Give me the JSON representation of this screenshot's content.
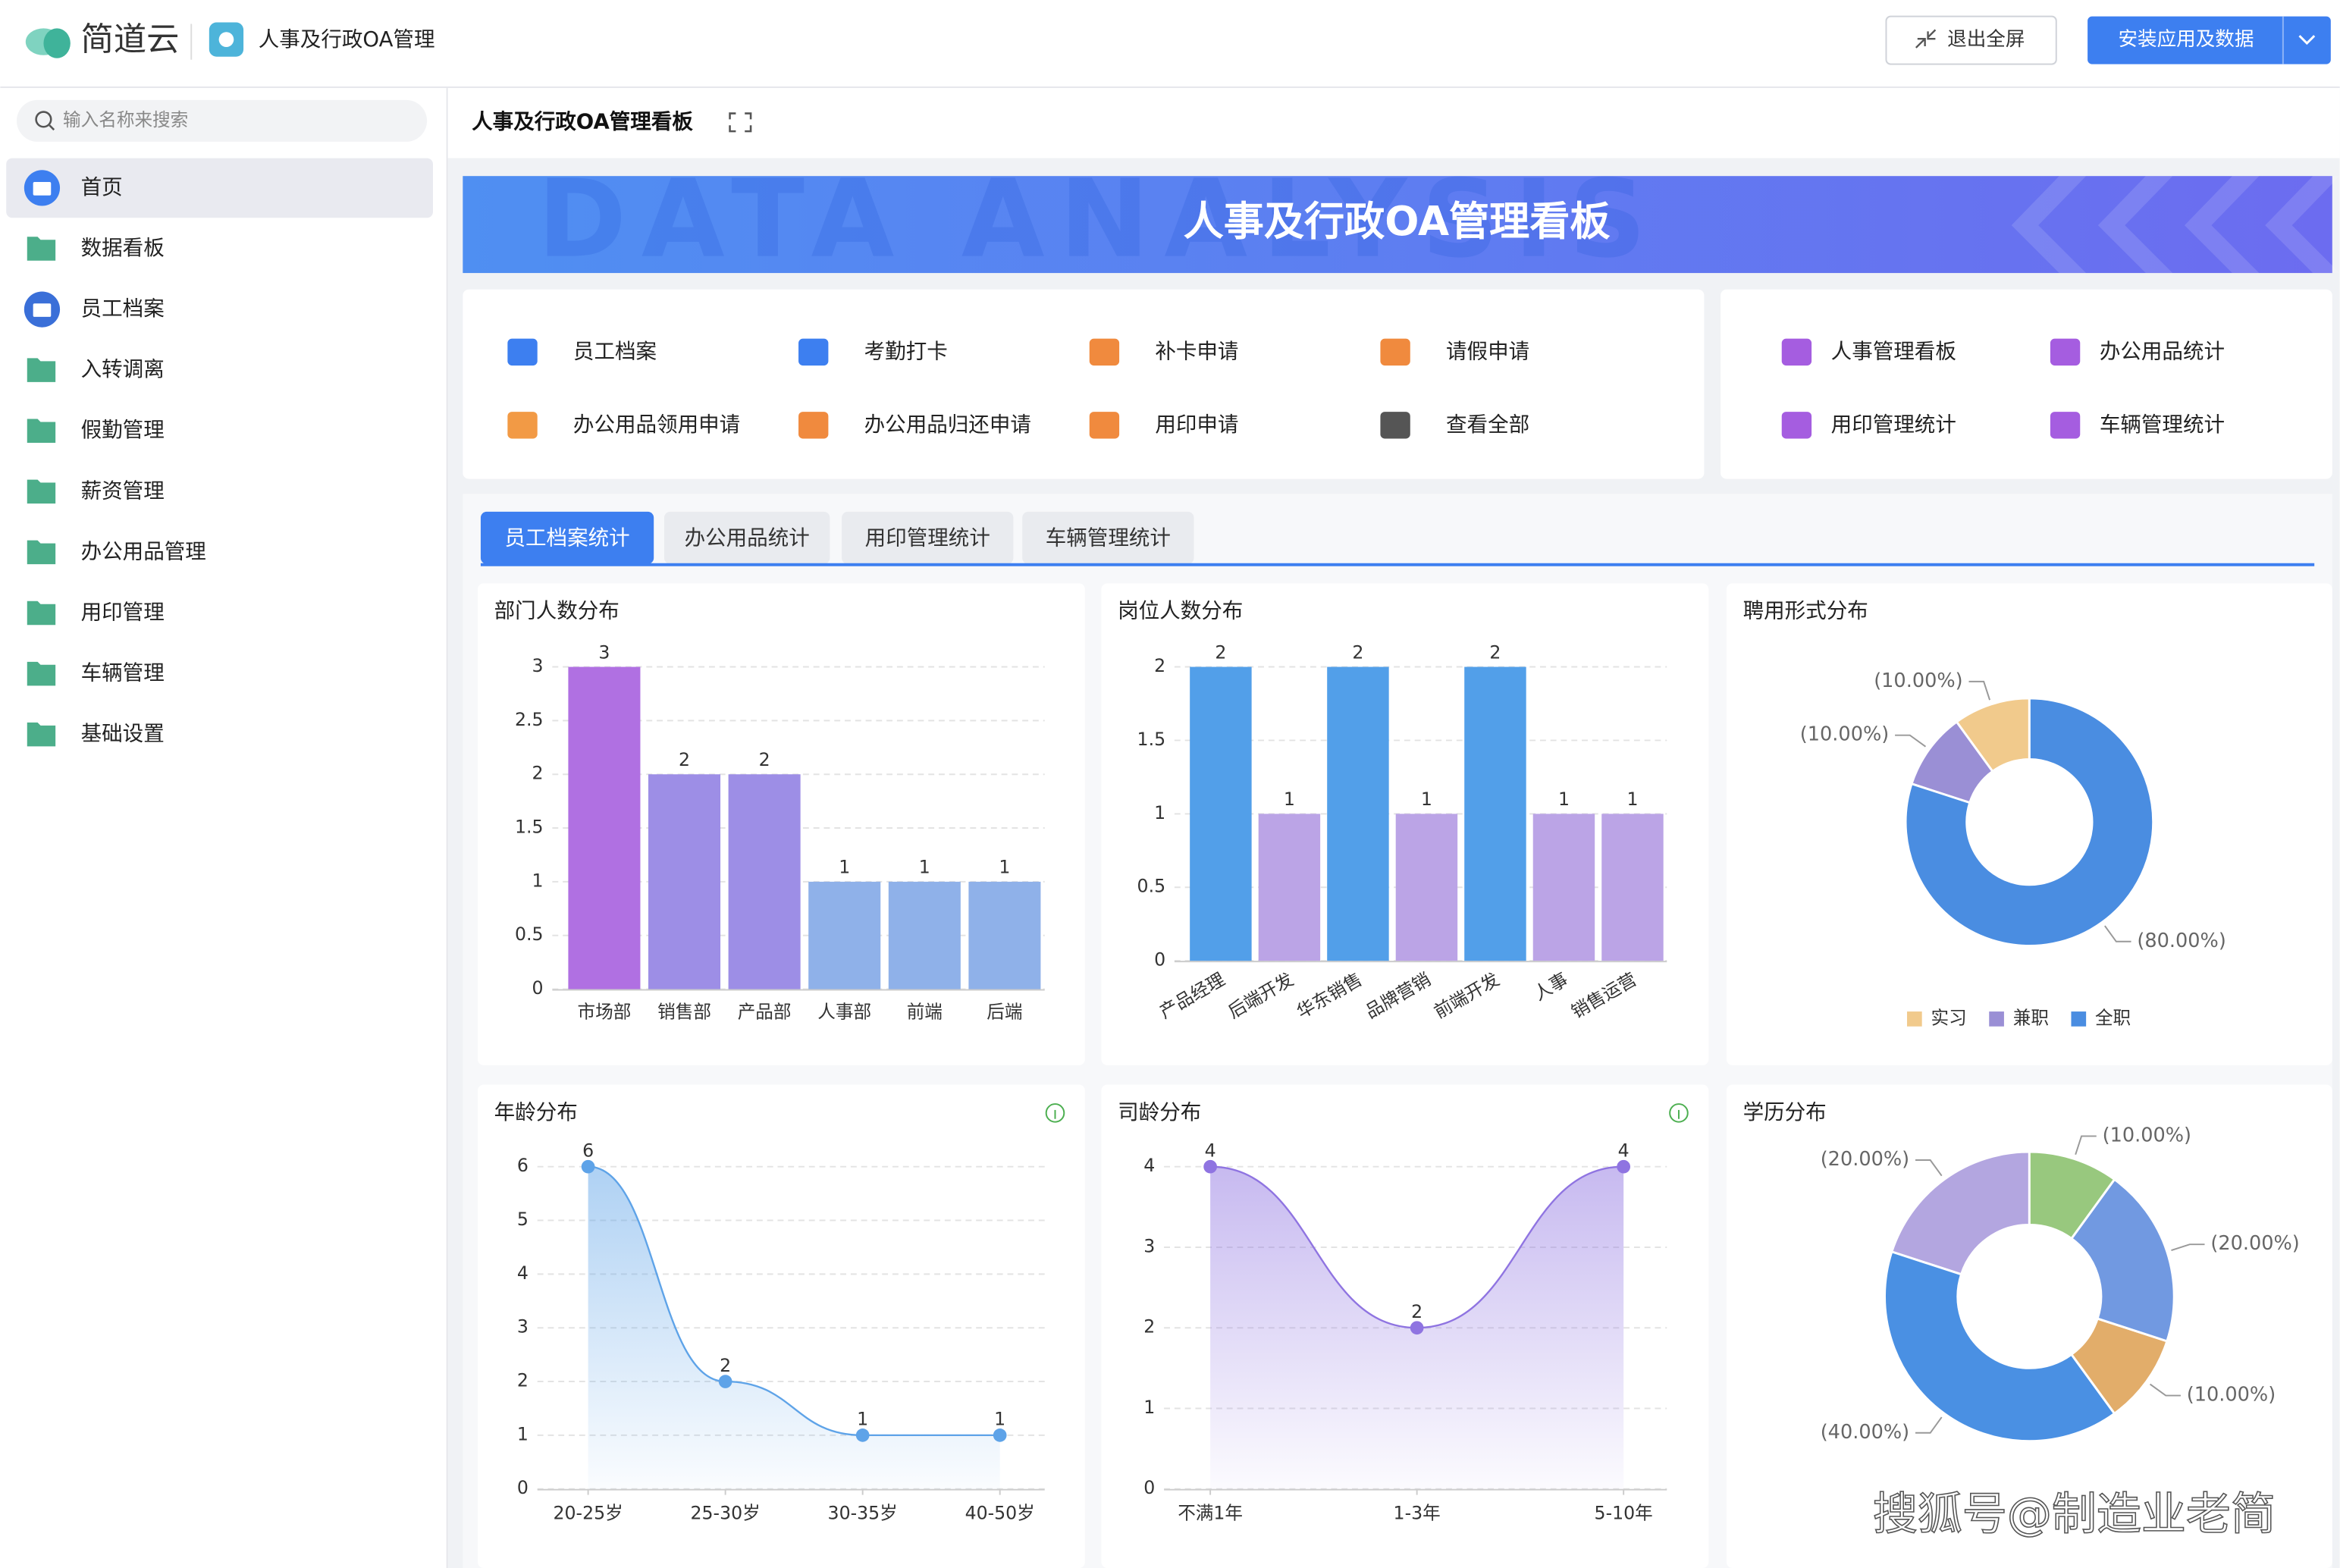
{
  "header": {
    "logo": "简道云",
    "app_name": "人事及行政OA管理",
    "exit_button": "退出全屏",
    "install_button": "安装应用及数据"
  },
  "sidebar": {
    "search_placeholder": "输入名称来搜索",
    "items": [
      "首页",
      "数据看板",
      "员工档案",
      "入转调离",
      "假勤管理",
      "薪资管理",
      "办公用品管理",
      "用印管理",
      "车辆管理",
      "基础设置"
    ]
  },
  "page": {
    "title": "人事及行政OA管理看板",
    "banner_title": "人事及行政OA管理看板",
    "banner_watermark": "DATA ANALYSIS"
  },
  "shortcuts": {
    "forms": [
      "员工档案",
      "考勤打卡",
      "补卡申请",
      "请假申请",
      "办公用品领用申请",
      "办公用品归还申请",
      "用印申请",
      "查看全部"
    ],
    "reports": [
      "人事管理看板",
      "办公用品统计",
      "用印管理统计",
      "车辆管理统计"
    ]
  },
  "tabs": [
    "员工档案统计",
    "办公用品统计",
    "用印管理统计",
    "车辆管理统计"
  ],
  "chart_data": [
    {
      "type": "bar",
      "title": "部门人数分布",
      "categories": [
        "市场部",
        "销售部",
        "产品部",
        "人事部",
        "前端",
        "后端"
      ],
      "values": [
        3,
        2,
        2,
        1,
        1,
        1
      ],
      "colors": [
        "#b070e2",
        "#9d8ee6",
        "#9d8ee6",
        "#8fb1e9",
        "#8fb1e9",
        "#8fb1e9"
      ],
      "ylim": [
        0,
        3
      ],
      "yticks": [
        0,
        0.5,
        1,
        1.5,
        2,
        2.5,
        3
      ],
      "grid": true
    },
    {
      "type": "bar",
      "title": "岗位人数分布",
      "categories": [
        "产品经理",
        "后端开发",
        "华东销售",
        "品牌营销",
        "前端开发",
        "人事",
        "销售运营"
      ],
      "values": [
        2,
        1,
        2,
        1,
        2,
        1,
        1
      ],
      "colors": [
        "#529fe9",
        "#bba4e6",
        "#529fe9",
        "#bba4e6",
        "#529fe9",
        "#bba4e6",
        "#bba4e6"
      ],
      "ylim": [
        0,
        2
      ],
      "yticks": [
        0,
        0.5,
        1,
        1.5,
        2
      ],
      "grid": true
    },
    {
      "type": "pie",
      "title": "聘用形式分布",
      "categories": [
        "实习",
        "兼职",
        "全职"
      ],
      "values": [
        10,
        10,
        80
      ],
      "value_labels": [
        "(10.00%)",
        "(10.00%)",
        "(80.00%)"
      ],
      "colors": [
        "#f1ca8c",
        "#9a8fd5",
        "#4a8de1"
      ],
      "donut": true
    },
    {
      "type": "line",
      "title": "年龄分布",
      "categories": [
        "20-25岁",
        "25-30岁",
        "30-35岁",
        "40-50岁"
      ],
      "values": [
        6,
        2,
        1,
        1
      ],
      "color": "#5ea3e8",
      "area": true,
      "ylim": [
        0,
        6
      ],
      "yticks": [
        0,
        1,
        2,
        3,
        4,
        5,
        6
      ],
      "grid": true
    },
    {
      "type": "line",
      "title": "司龄分布",
      "categories": [
        "不满1年",
        "1-3年",
        "5-10年"
      ],
      "values": [
        4,
        2,
        4
      ],
      "color": "#8f74e1",
      "area": true,
      "ylim": [
        0,
        4
      ],
      "yticks": [
        0,
        1,
        2,
        3,
        4
      ],
      "grid": true
    },
    {
      "type": "pie",
      "title": "学历分布",
      "values": [
        20,
        40,
        10,
        20,
        10
      ],
      "value_labels": [
        "(20.00%)",
        "(40.00%)",
        "(10.00%)",
        "(20.00%)",
        "(10.00%)"
      ],
      "colors": [
        "#b3a6e0",
        "#4a90e3",
        "#e2ad6a",
        "#7199e1",
        "#98c87e"
      ],
      "donut": true
    }
  ],
  "watermark": "搜狐号@制造业老简"
}
